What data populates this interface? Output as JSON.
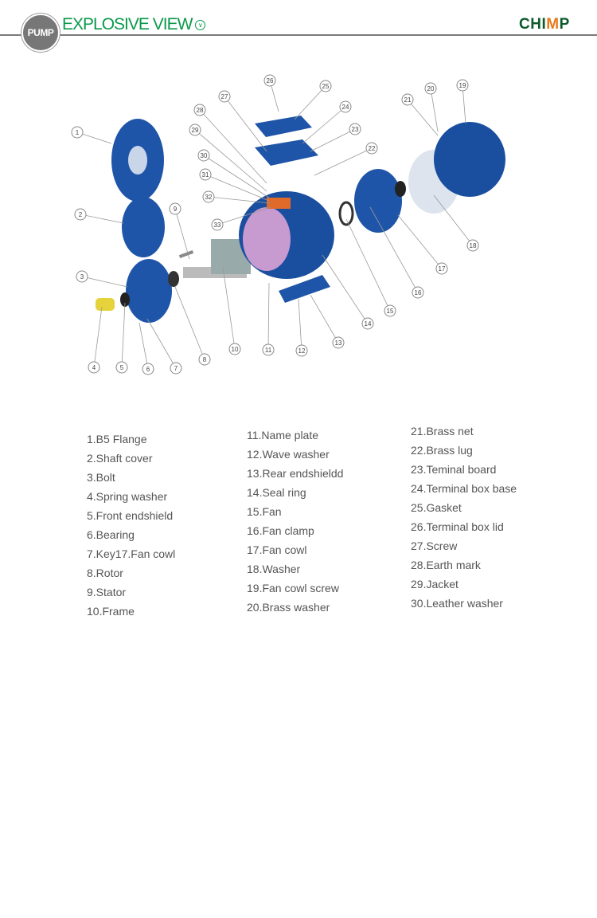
{
  "header": {
    "badge": "PUMP",
    "title": "EXPLOSIVE VIEW",
    "title_icon": "chevron-down-circle-icon",
    "logo": "CHIMP"
  },
  "colors": {
    "accent": "#0a9a4a",
    "motor_blue": "#1a4fa0",
    "line": "#7a7a7a",
    "text": "#555555"
  },
  "diagram": {
    "callouts": [
      "1",
      "2",
      "3",
      "4",
      "5",
      "6",
      "7",
      "8",
      "9",
      "10",
      "11",
      "12",
      "13",
      "14",
      "15",
      "16",
      "17",
      "18",
      "19",
      "20",
      "21",
      "22",
      "23",
      "24",
      "25",
      "26",
      "27",
      "28",
      "29",
      "30",
      "31",
      "32",
      "33"
    ]
  },
  "parts": {
    "col1": [
      "1.B5 Flange",
      "2.Shaft cover",
      "3.Bolt",
      "4.Spring washer",
      "5.Front endshield",
      "6.Bearing",
      "7.Key17.Fan cowl",
      "8.Rotor",
      "9.Stator",
      "10.Frame"
    ],
    "col2": [
      "11.Name plate",
      "12.Wave washer",
      "13.Rear endshieldd",
      "14.Seal ring",
      "15.Fan",
      "16.Fan clamp",
      "17.Fan cowl",
      "18.Washer",
      "19.Fan cowl screw",
      "20.Brass washer"
    ],
    "col3": [
      "21.Brass net",
      "22.Brass lug",
      "23.Teminal board",
      "24.Terminal box base",
      "25.Gasket",
      "26.Terminal box lid",
      "27.Screw",
      "28.Earth mark",
      "29.Jacket",
      "30.Leather washer"
    ]
  }
}
